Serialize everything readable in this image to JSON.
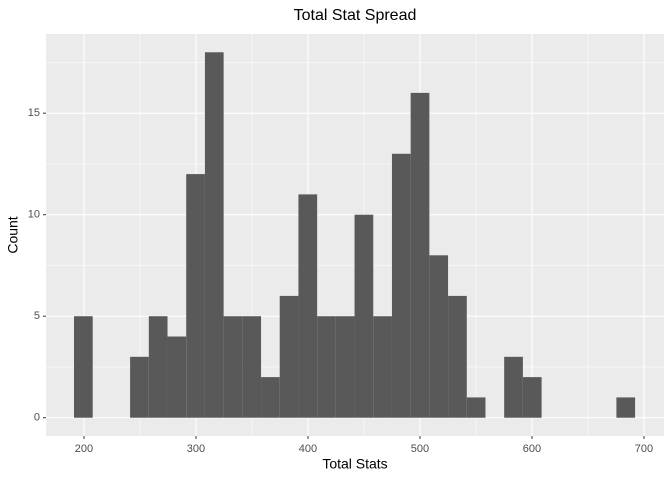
{
  "chart_data": {
    "type": "histogram",
    "title": "Total Stat Spread",
    "x_label": "Total Stats",
    "y_label": "Count",
    "bins": [
      191.1,
      207.8,
      224.5,
      241.2,
      257.9,
      274.6,
      291.3,
      308.0,
      324.7,
      341.4,
      358.1,
      374.8,
      391.5,
      408.2,
      424.9,
      441.6,
      458.3,
      475.0,
      491.7,
      508.4,
      525.1,
      541.8,
      558.5,
      575.2,
      591.9,
      608.6,
      625.3,
      642.0,
      658.7,
      675.4,
      692.1
    ],
    "values": [
      5,
      0,
      0,
      3,
      5,
      4,
      12,
      18,
      5,
      5,
      2,
      6,
      11,
      5,
      5,
      10,
      5,
      13,
      16,
      8,
      6,
      1,
      0,
      3,
      2,
      0,
      0,
      0,
      0,
      1
    ],
    "color": "#595959",
    "xlim": [
      166.1,
      717.9
    ],
    "xticks": [
      200,
      300,
      400,
      500,
      600,
      700
    ],
    "ylim": [
      -0.9,
      18.9
    ],
    "yticks": [
      0,
      5,
      10,
      15
    ],
    "grid": true
  }
}
